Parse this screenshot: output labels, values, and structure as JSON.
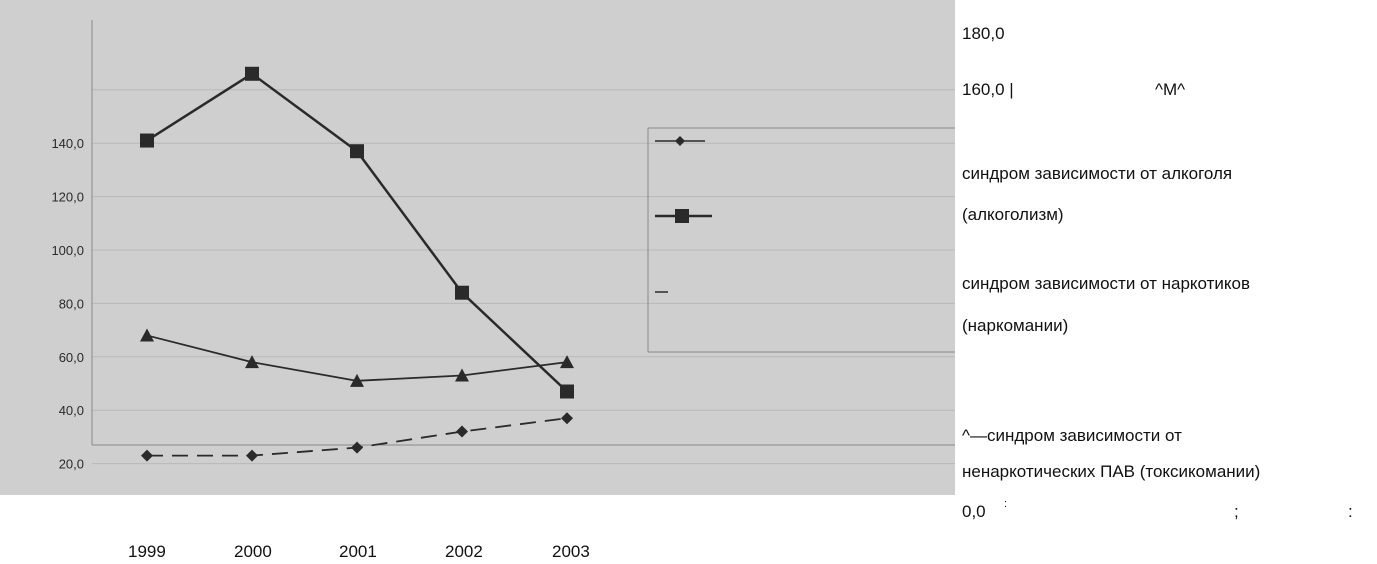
{
  "chart_data": {
    "type": "line",
    "x": [
      "1999",
      "2000",
      "2001",
      "2002",
      "2003"
    ],
    "y_tick_labels": [
      "140,0",
      "120,0",
      "100,0",
      "80,0",
      "60,0",
      "40,0",
      "20,0"
    ],
    "ylim": [
      0,
      180
    ],
    "grid": true,
    "legend_position": "right",
    "series": [
      {
        "marker": "square",
        "line": "solid",
        "values": [
          141,
          166,
          137,
          84,
          47
        ]
      },
      {
        "marker": "triangle",
        "line": "solid",
        "values": [
          68,
          58,
          51,
          53,
          58
        ]
      },
      {
        "marker": "diamond",
        "line": "dashed",
        "values": [
          23,
          23,
          26,
          32,
          37
        ]
      }
    ],
    "colors": {
      "scan_background": "#cfcfcf",
      "ink": "#2a2a2a"
    }
  },
  "side_text": {
    "y_180": "180,0",
    "y_160": "160,0 |",
    "stray_1": "^M^",
    "legend_1_line1": "синдром зависимости от алкоголя",
    "legend_1_line2": "(алкоголизм)",
    "legend_2_line1": "синдром зависимости от наркотиков",
    "legend_2_line2": "(наркомании)",
    "legend_3_line1": "^—синдром зависимости от",
    "legend_3_line2": "ненаркотических ПАВ (токсикомании)",
    "y_0": "0,0",
    "colon_small": ":",
    "semicolon": ";",
    "colon": ":"
  }
}
